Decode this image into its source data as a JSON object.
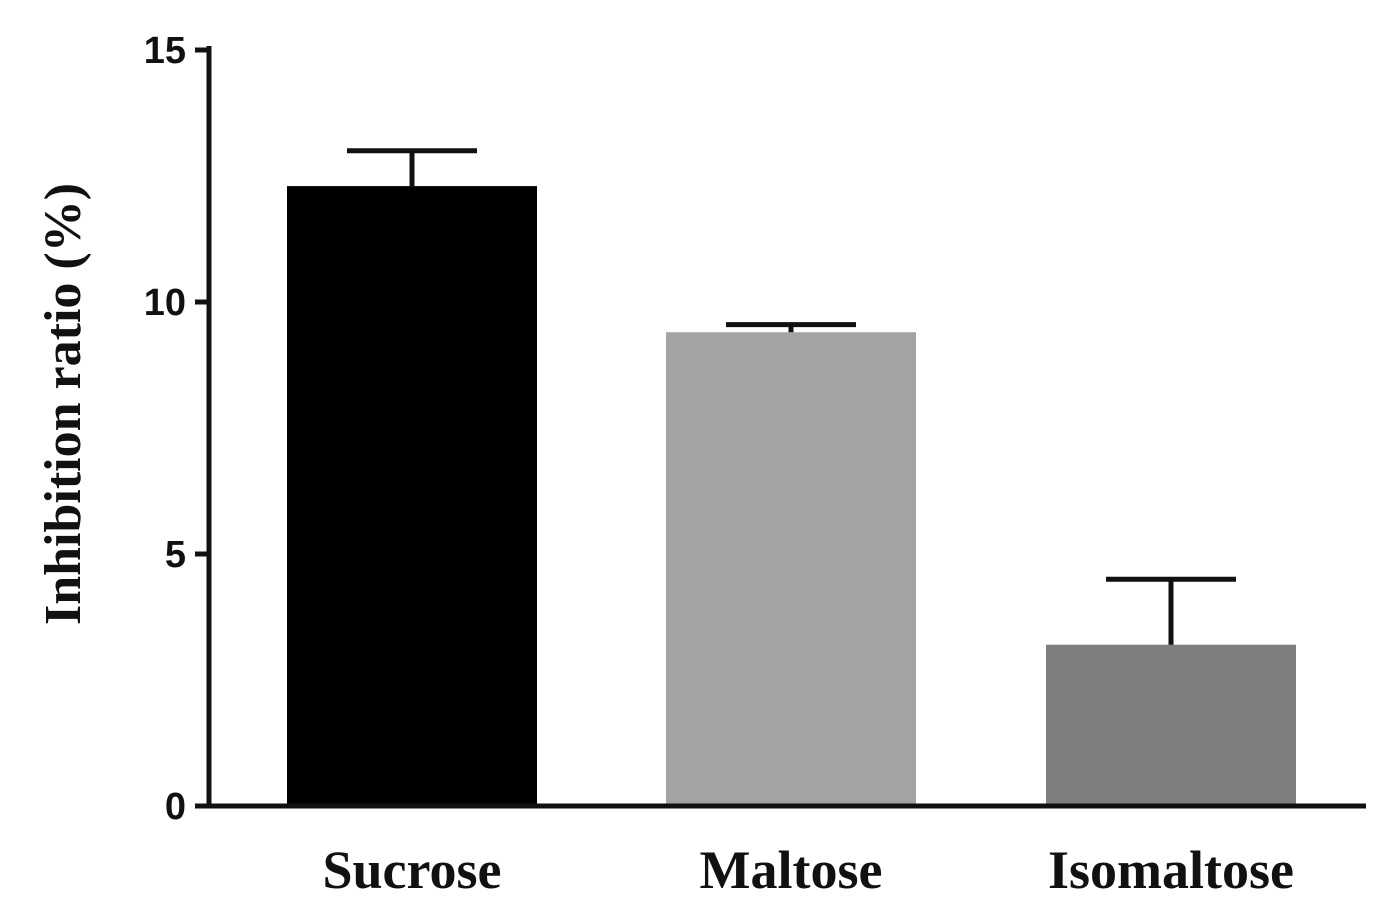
{
  "chart_data": {
    "type": "bar",
    "title": "",
    "xlabel": "",
    "ylabel": "Inhibition ratio (%)",
    "categories": [
      "Sucrose",
      "Maltose",
      "Isomaltose"
    ],
    "values": [
      12.3,
      9.4,
      3.2
    ],
    "errors": [
      0.7,
      0.15,
      1.3
    ],
    "bar_colors": [
      "#000000",
      "#a3a3a5",
      "#7e7e7e"
    ],
    "ylim": [
      0,
      15
    ],
    "yticks": [
      0,
      5,
      10,
      15
    ],
    "ytick_labels": [
      "0",
      "5",
      "10",
      "15"
    ],
    "grid": false,
    "legend": "none"
  }
}
